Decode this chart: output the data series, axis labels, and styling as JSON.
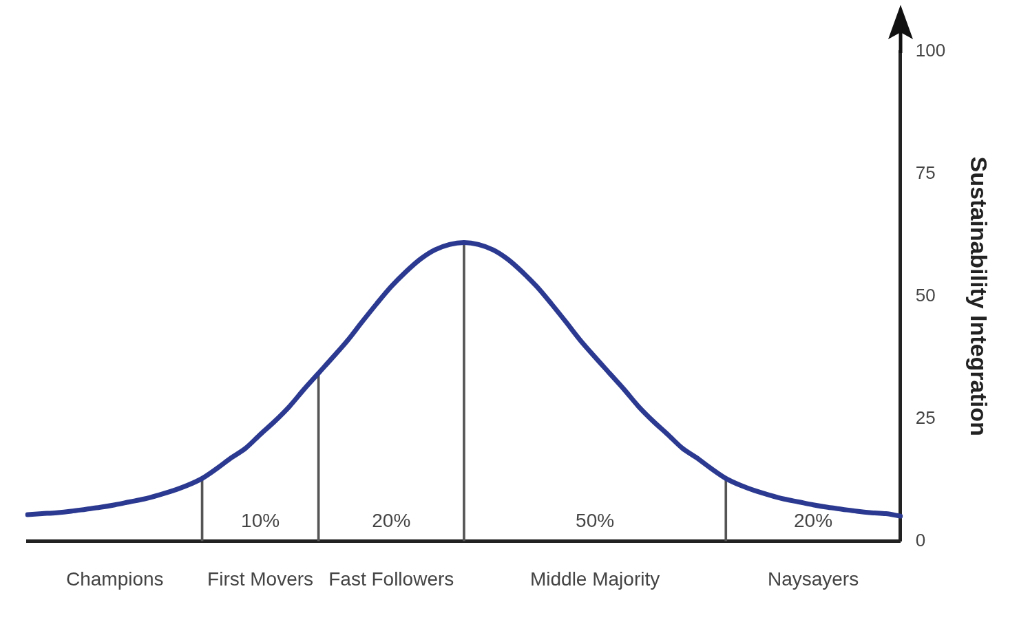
{
  "chart_data": {
    "type": "line",
    "ylabel": "Sustainability Integration",
    "categories": [
      null,
      null,
      null,
      null,
      null,
      null,
      "Champions",
      null,
      null,
      null,
      null,
      null,
      null,
      null,
      null,
      null,
      "First Movers",
      null,
      null,
      null,
      null,
      null,
      null,
      null,
      null,
      "Fast Followers",
      null,
      null,
      null,
      null,
      null,
      null,
      null,
      null,
      null,
      null,
      null,
      null,
      null,
      "Middle Majority",
      null,
      null,
      null,
      null,
      null,
      null,
      null,
      null,
      null,
      null,
      null,
      null,
      null,
      null,
      "Naysayers",
      null,
      null,
      null,
      null,
      null,
      null
    ],
    "series": [
      {
        "color": "#2b3990",
        "values": [
          5.4,
          5.6,
          5.8,
          6.1,
          6.5,
          6.9,
          7.4,
          8,
          8.6,
          9.4,
          10.3,
          11.4,
          12.8,
          14.8,
          17,
          19,
          21.8,
          24.5,
          27.5,
          31,
          34.3,
          37.6,
          41,
          44.8,
          48.5,
          52,
          55,
          57.6,
          59.5,
          60.6,
          61,
          60.6,
          59.5,
          57.6,
          55,
          52,
          48.5,
          44.8,
          41,
          37.6,
          34.3,
          31,
          27.5,
          24.5,
          21.8,
          19,
          17,
          14.8,
          12.8,
          11.4,
          10.3,
          9.4,
          8.6,
          8,
          7.4,
          6.9,
          6.5,
          6.1,
          5.8,
          5.6,
          5.1
        ]
      },
      {
        "type": "bar",
        "color": "#555555",
        "values": [
          null,
          null,
          null,
          null,
          null,
          null,
          null,
          null,
          null,
          null,
          null,
          null,
          12.8,
          null,
          null,
          null,
          null,
          null,
          null,
          null,
          34.3,
          null,
          null,
          null,
          null,
          null,
          null,
          null,
          null,
          null,
          61,
          null,
          null,
          null,
          null,
          null,
          null,
          null,
          null,
          null,
          null,
          null,
          null,
          null,
          null,
          null,
          null,
          null,
          12.8,
          null,
          null,
          null,
          null,
          null,
          null,
          null,
          null,
          null,
          null,
          null,
          null
        ]
      }
    ],
    "ylim": [
      0,
      100
    ],
    "yticks": [
      0,
      25,
      50,
      75,
      100
    ],
    "annotations": [
      "10%",
      "20%",
      "50%",
      "20%"
    ],
    "grid": false,
    "legend": false,
    "marker": "none",
    "line_style": "solid"
  }
}
